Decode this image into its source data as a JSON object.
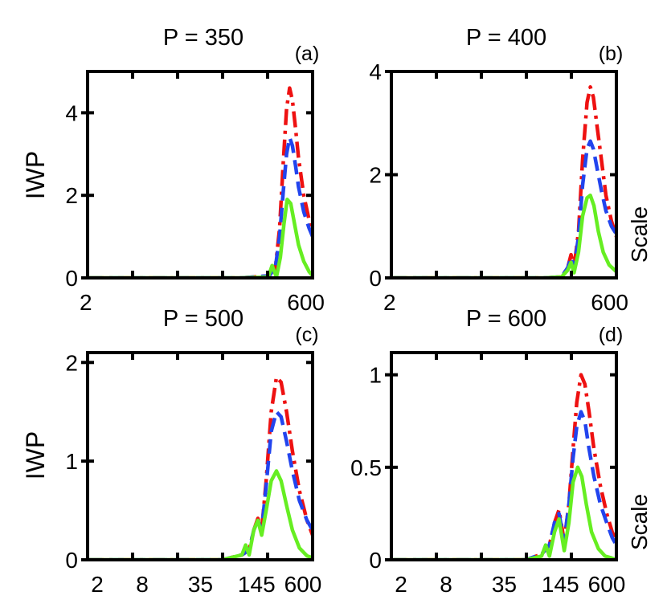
{
  "figure": {
    "ylabel": "IWP",
    "xlabel": "Scale",
    "colors": {
      "red": "#ee1111",
      "blue": "#2244ee",
      "green": "#66ee22",
      "axis": "#000000"
    }
  },
  "chart_data": [
    {
      "type": "line",
      "panel": "(a)",
      "title": "P = 350",
      "ylabel": "IWP",
      "xlabel": "Scale",
      "xscale": "log",
      "xlim": [
        2,
        600
      ],
      "xticks": [
        2,
        600
      ],
      "ylim": [
        0,
        5
      ],
      "yticks": [
        0,
        2,
        4
      ],
      "series": [
        {
          "name": "red dash-dot",
          "color": "#ee1111",
          "style": "dashdot",
          "x": [
            2,
            100,
            200,
            215,
            225,
            235,
            260,
            285,
            310,
            335,
            360,
            390,
            420,
            480,
            550,
            600
          ],
          "y": [
            0,
            0,
            0.05,
            0.15,
            0.15,
            0.3,
            1.2,
            2.8,
            4.1,
            4.6,
            4.3,
            3.6,
            2.9,
            2.0,
            1.4,
            1.1
          ]
        },
        {
          "name": "blue dashed",
          "color": "#2244ee",
          "style": "dashed",
          "x": [
            2,
            100,
            200,
            215,
            225,
            235,
            260,
            285,
            310,
            335,
            360,
            390,
            420,
            480,
            550,
            600
          ],
          "y": [
            0,
            0,
            0.05,
            0.15,
            0.15,
            0.3,
            1.0,
            2.1,
            3.0,
            3.4,
            3.2,
            2.7,
            2.2,
            1.6,
            1.2,
            1.0
          ]
        },
        {
          "name": "green solid",
          "color": "#66ee22",
          "style": "solid",
          "x": [
            2,
            100,
            195,
            215,
            240,
            265,
            290,
            315,
            345,
            380,
            420,
            480,
            550,
            600
          ],
          "y": [
            0,
            0,
            0.02,
            0.3,
            0.02,
            0.5,
            1.3,
            1.9,
            1.8,
            1.3,
            0.8,
            0.4,
            0.15,
            0.05
          ]
        }
      ]
    },
    {
      "type": "line",
      "panel": "(b)",
      "title": "P = 400",
      "ylabel": "IWP",
      "xlabel": "Scale",
      "xscale": "log",
      "xlim": [
        2,
        600
      ],
      "xticks": [
        2,
        600
      ],
      "ylim": [
        0,
        4
      ],
      "yticks": [
        0,
        2,
        4
      ],
      "series": [
        {
          "name": "red dash-dot",
          "color": "#ee1111",
          "style": "dashdot",
          "x": [
            2,
            100,
            150,
            175,
            190,
            205,
            230,
            255,
            285,
            310,
            335,
            370,
            410,
            460,
            530,
            600
          ],
          "y": [
            0,
            0,
            0.02,
            0.2,
            0.45,
            0.2,
            0.9,
            2.3,
            3.4,
            3.7,
            3.5,
            2.9,
            2.3,
            1.6,
            1.1,
            0.8
          ]
        },
        {
          "name": "blue dashed",
          "color": "#2244ee",
          "style": "dashed",
          "x": [
            2,
            100,
            150,
            175,
            190,
            205,
            230,
            255,
            285,
            310,
            335,
            370,
            410,
            460,
            530,
            600
          ],
          "y": [
            0,
            0,
            0.02,
            0.2,
            0.4,
            0.2,
            0.8,
            1.8,
            2.5,
            2.65,
            2.5,
            2.1,
            1.7,
            1.3,
            1.0,
            0.85
          ]
        },
        {
          "name": "green solid",
          "color": "#66ee22",
          "style": "solid",
          "x": [
            2,
            100,
            150,
            175,
            190,
            205,
            230,
            255,
            285,
            310,
            340,
            380,
            430,
            500,
            600
          ],
          "y": [
            0,
            0,
            0.02,
            0.15,
            0.3,
            0.1,
            0.5,
            1.2,
            1.55,
            1.6,
            1.4,
            0.9,
            0.5,
            0.25,
            0.12
          ]
        }
      ]
    },
    {
      "type": "line",
      "panel": "(c)",
      "title": "P = 500",
      "ylabel": "IWP",
      "xlabel": "Scale",
      "xscale": "log",
      "xlim": [
        2,
        600
      ],
      "xticks": [
        2,
        8,
        35,
        145,
        600
      ],
      "ylim": [
        0,
        2.1
      ],
      "yticks": [
        0,
        1,
        2
      ],
      "series": [
        {
          "name": "red dash-dot",
          "color": "#ee1111",
          "style": "dashdot",
          "x": [
            2,
            60,
            100,
            120,
            135,
            150,
            165,
            185,
            210,
            240,
            270,
            310,
            360,
            430,
            520,
            600
          ],
          "y": [
            0,
            0,
            0.05,
            0.1,
            0.3,
            0.42,
            0.3,
            0.8,
            1.5,
            1.85,
            1.8,
            1.5,
            1.1,
            0.7,
            0.4,
            0.25
          ]
        },
        {
          "name": "blue dashed",
          "color": "#2244ee",
          "style": "dashed",
          "x": [
            2,
            60,
            100,
            120,
            135,
            150,
            165,
            185,
            210,
            240,
            270,
            310,
            360,
            430,
            520,
            600
          ],
          "y": [
            0,
            0,
            0.05,
            0.1,
            0.3,
            0.4,
            0.3,
            0.75,
            1.3,
            1.5,
            1.45,
            1.2,
            0.9,
            0.6,
            0.4,
            0.3
          ]
        },
        {
          "name": "green solid",
          "color": "#66ee22",
          "style": "solid",
          "x": [
            2,
            60,
            100,
            110,
            120,
            135,
            150,
            165,
            185,
            210,
            240,
            270,
            310,
            360,
            430,
            520,
            600
          ],
          "y": [
            0,
            0,
            0.05,
            0.15,
            0.05,
            0.3,
            0.4,
            0.25,
            0.5,
            0.8,
            0.9,
            0.8,
            0.55,
            0.3,
            0.12,
            0.04,
            0.02
          ]
        }
      ]
    },
    {
      "type": "line",
      "panel": "(d)",
      "title": "P = 600",
      "ylabel": "IWP",
      "xlabel": "Scale",
      "xscale": "log",
      "xlim": [
        2,
        600
      ],
      "xticks": [
        2,
        8,
        35,
        145,
        600
      ],
      "ylim": [
        0,
        1.12
      ],
      "yticks": [
        0,
        0.5,
        1
      ],
      "series": [
        {
          "name": "red dash-dot",
          "color": "#ee1111",
          "style": "dashdot",
          "x": [
            2,
            60,
            90,
            110,
            125,
            140,
            160,
            180,
            200,
            220,
            245,
            270,
            300,
            340,
            400,
            470,
            540,
            600
          ],
          "y": [
            0,
            0,
            0.03,
            0.08,
            0.2,
            0.27,
            0.1,
            0.3,
            0.6,
            0.85,
            1.0,
            0.95,
            0.8,
            0.6,
            0.4,
            0.25,
            0.15,
            0.1
          ]
        },
        {
          "name": "blue dashed",
          "color": "#2244ee",
          "style": "dashed",
          "x": [
            2,
            60,
            90,
            110,
            125,
            140,
            160,
            180,
            200,
            220,
            245,
            270,
            300,
            340,
            400,
            470,
            540,
            600
          ],
          "y": [
            0,
            0,
            0.03,
            0.08,
            0.2,
            0.25,
            0.1,
            0.3,
            0.55,
            0.72,
            0.8,
            0.75,
            0.6,
            0.45,
            0.3,
            0.2,
            0.12,
            0.08
          ]
        },
        {
          "name": "green solid",
          "color": "#66ee22",
          "style": "solid",
          "x": [
            2,
            60,
            90,
            100,
            110,
            125,
            140,
            160,
            180,
            200,
            225,
            250,
            280,
            320,
            380,
            450,
            530,
            600
          ],
          "y": [
            0,
            0,
            0.02,
            0.08,
            0.02,
            0.15,
            0.22,
            0.05,
            0.2,
            0.42,
            0.5,
            0.45,
            0.3,
            0.15,
            0.06,
            0.02,
            0.01,
            0.0
          ]
        }
      ]
    }
  ]
}
